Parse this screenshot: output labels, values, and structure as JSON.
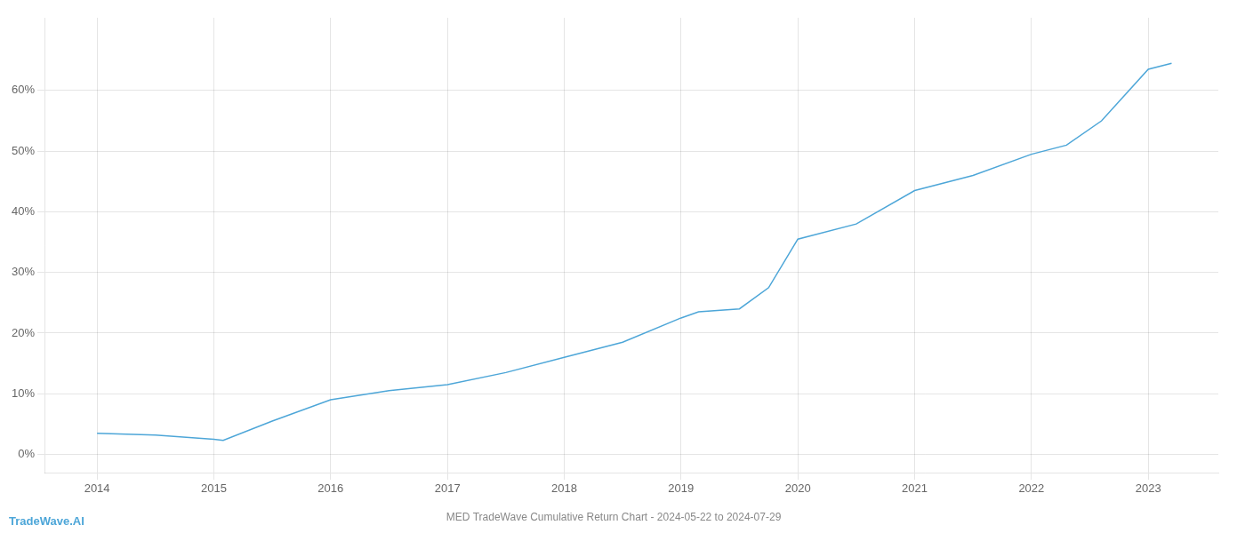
{
  "chart_data": {
    "type": "line",
    "title": "MED TradeWave Cumulative Return Chart - 2024-05-22 to 2024-07-29",
    "annotations": [
      "TradeWave.AI"
    ],
    "color": "#4da6d8",
    "x": [
      2014,
      2014.5,
      2015,
      2015.08,
      2015.5,
      2016,
      2016.5,
      2017,
      2017.5,
      2018,
      2018.5,
      2019,
      2019.15,
      2019.5,
      2019.75,
      2020,
      2020.5,
      2021,
      2021.5,
      2022,
      2022.3,
      2022.6,
      2023,
      2023.2
    ],
    "values": [
      3.5,
      3.2,
      2.5,
      2.3,
      5.5,
      9.0,
      10.5,
      11.5,
      13.5,
      16.0,
      18.5,
      22.5,
      23.5,
      24.0,
      27.5,
      35.5,
      38.0,
      43.5,
      46.0,
      49.5,
      51.0,
      55.0,
      63.5,
      64.5
    ],
    "xlim": [
      2013.55,
      2023.6
    ],
    "ylim": [
      -3,
      72
    ],
    "xticks": [
      2014,
      2015,
      2016,
      2017,
      2018,
      2019,
      2020,
      2021,
      2022,
      2023
    ],
    "yticks": [
      {
        "value": 0,
        "label": "0%"
      },
      {
        "value": 10,
        "label": "10%"
      },
      {
        "value": 20,
        "label": "20%"
      },
      {
        "value": 30,
        "label": "30%"
      },
      {
        "value": 40,
        "label": "40%"
      },
      {
        "value": 50,
        "label": "50%"
      },
      {
        "value": 60,
        "label": "60%"
      }
    ],
    "grid": true
  }
}
